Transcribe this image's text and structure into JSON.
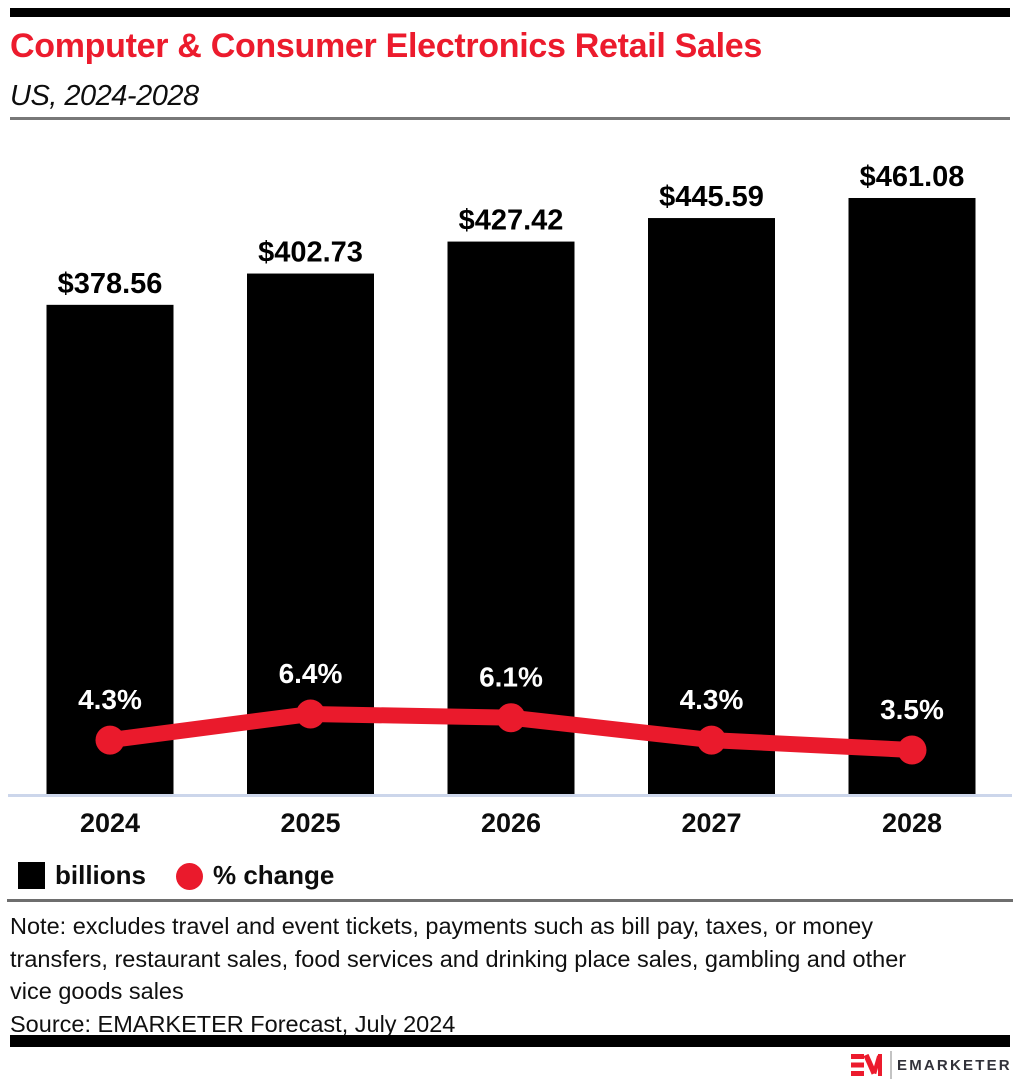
{
  "header": {
    "title": "Computer & Consumer Electronics Retail Sales",
    "subtitle": "US, 2024-2028"
  },
  "chart_data": {
    "type": "combo_bar_line",
    "categories": [
      "2024",
      "2025",
      "2026",
      "2027",
      "2028"
    ],
    "series": [
      {
        "name": "billions",
        "type": "bar",
        "color": "#000000",
        "values": [
          378.56,
          402.73,
          427.42,
          445.59,
          461.08
        ],
        "labels": [
          "$378.56",
          "$402.73",
          "$427.42",
          "$445.59",
          "$461.08"
        ]
      },
      {
        "name": "% change",
        "type": "line",
        "color": "#EA1A2C",
        "values": [
          4.3,
          6.4,
          6.1,
          4.3,
          3.5
        ],
        "labels": [
          "4.3%",
          "6.4%",
          "6.1%",
          "4.3%",
          "3.5%"
        ]
      }
    ],
    "bar_ylim": [
      0,
      480
    ],
    "grid": false,
    "legend_position": "bottom-left",
    "value_label_color": "#000000",
    "pct_label_color": "#ffffff",
    "baseline_color": "#CCD6EB"
  },
  "legend": {
    "items": [
      {
        "label": "billions",
        "swatch": "square",
        "color": "#000000"
      },
      {
        "label": "% change",
        "swatch": "circle",
        "color": "#EA1A2C"
      }
    ]
  },
  "note": {
    "lines": [
      "Note: excludes travel and event tickets, payments such as bill pay, taxes, or money",
      "transfers, restaurant sales, food services and drinking place sales, gambling and other",
      "vice goods sales"
    ],
    "source": "Source: EMARKETER Forecast, July 2024"
  },
  "footer": {
    "brand": "EMARKETER"
  },
  "colors": {
    "accent_red": "#EC1B2D",
    "bar_black": "#000000",
    "baseline": "#CCD6EB"
  }
}
